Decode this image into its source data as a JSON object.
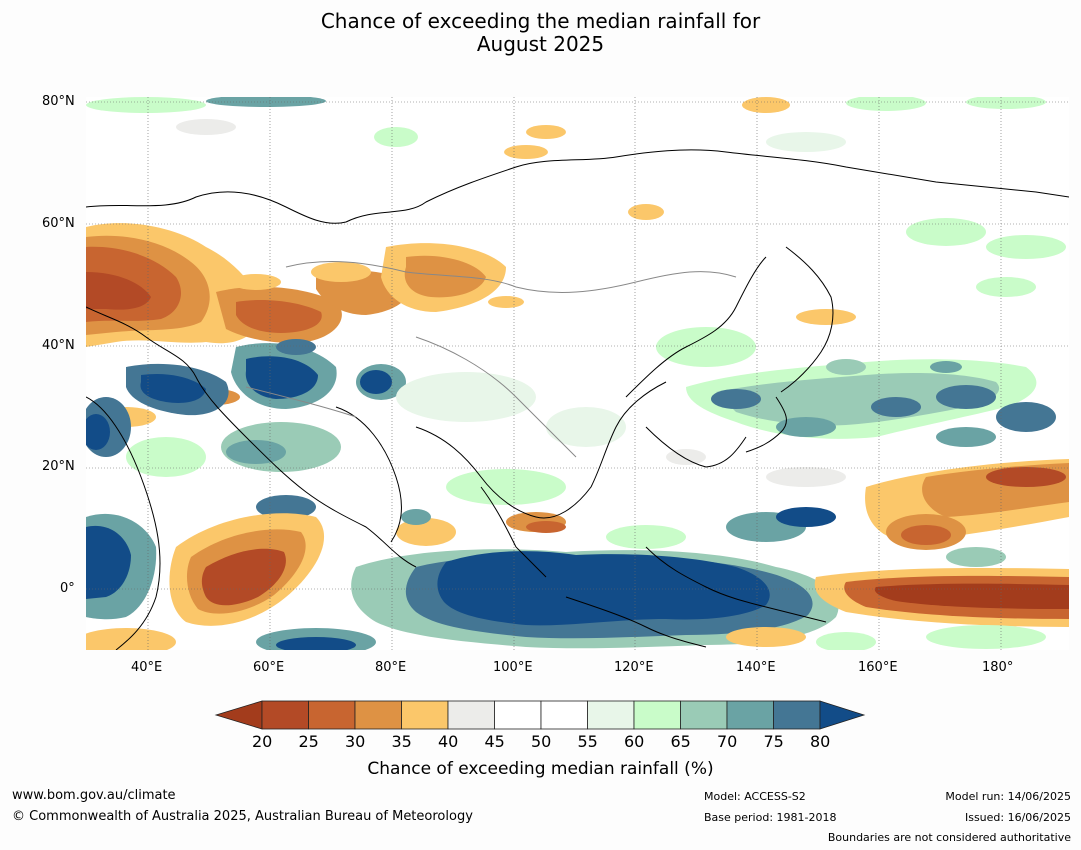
{
  "title_line1": "Chance of exceeding the median rainfall for",
  "title_line2": "August 2025",
  "lat_labels": [
    "80°N",
    "60°N",
    "40°N",
    "20°N",
    "0°"
  ],
  "lon_labels": [
    "40°E",
    "60°E",
    "80°E",
    "100°E",
    "120°E",
    "140°E",
    "160°E",
    "180°"
  ],
  "colorbar": {
    "ticks": [
      "20",
      "25",
      "30",
      "35",
      "40",
      "45",
      "50",
      "55",
      "60",
      "65",
      "70",
      "75",
      "80"
    ],
    "colors": [
      "#a33c1c",
      "#b34a26",
      "#c86530",
      "#de9244",
      "#fbc76a",
      "#ececea",
      "#ffffff",
      "#ffffff",
      "#e8f6e9",
      "#c9fcc9",
      "#9acbb6",
      "#6aa3a4",
      "#447694",
      "#124c88"
    ],
    "label": "Chance of exceeding median rainfall (%)"
  },
  "footer": {
    "url": "www.bom.gov.au/climate",
    "copyright": "© Commonwealth of Australia 2025, Australian Bureau of Meteorology",
    "model": "Model: ACCESS-S2",
    "base_period": "Base period: 1981-2018",
    "model_run": "Model run: 14/06/2025",
    "issued": "Issued: 16/06/2025",
    "disclaimer": "Boundaries are not considered authoritative"
  }
}
